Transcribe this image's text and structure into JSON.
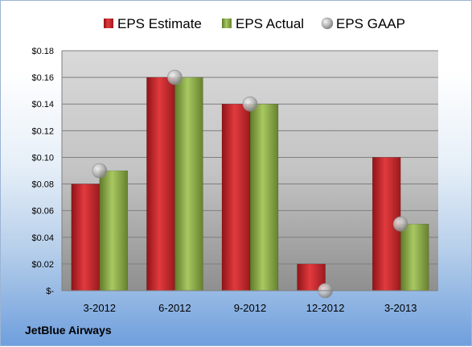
{
  "company": "JetBlue Airways",
  "chart_data": {
    "type": "bar",
    "categories": [
      "3-2012",
      "6-2012",
      "9-2012",
      "12-2012",
      "3-2013"
    ],
    "series": [
      {
        "name": "EPS Estimate",
        "kind": "bar",
        "color": "#c0262a",
        "values": [
          0.08,
          0.16,
          0.14,
          0.02,
          0.1
        ]
      },
      {
        "name": "EPS Actual",
        "kind": "bar",
        "color": "#8bab45",
        "values": [
          0.09,
          0.16,
          0.14,
          0.0,
          0.05
        ]
      },
      {
        "name": "EPS GAAP",
        "kind": "marker",
        "color": "#a8a8a8",
        "values": [
          0.09,
          0.16,
          0.14,
          0.0,
          0.05
        ]
      }
    ],
    "ylim": [
      0,
      0.18
    ],
    "yticks": [
      0,
      0.02,
      0.04,
      0.06,
      0.08,
      0.1,
      0.12,
      0.14,
      0.16,
      0.18
    ],
    "ytick_labels": [
      "$-",
      "$0.02",
      "$0.04",
      "$0.06",
      "$0.08",
      "$0.10",
      "$0.12",
      "$0.14",
      "$0.16",
      "$0.18"
    ],
    "grid": true,
    "legend_position": "top"
  }
}
